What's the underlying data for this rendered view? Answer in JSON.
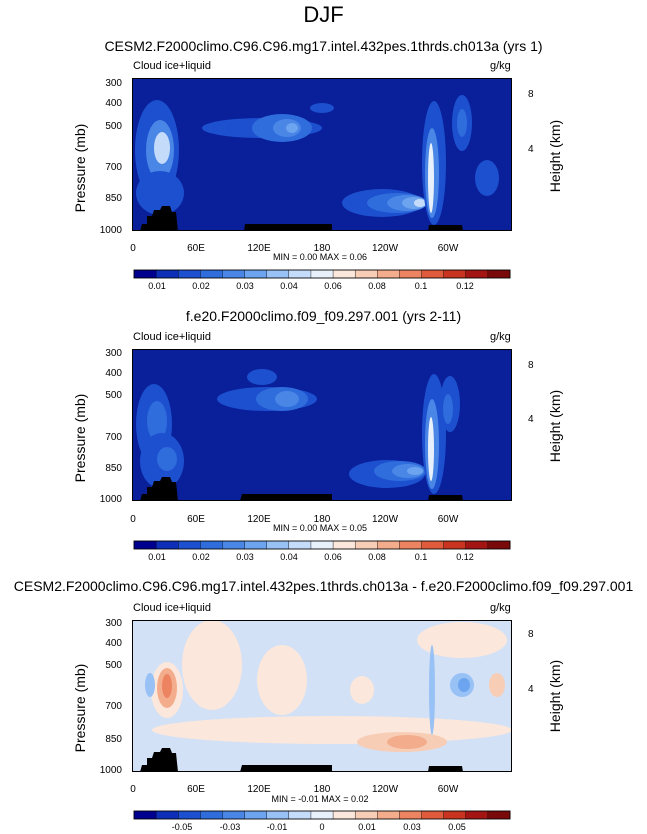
{
  "page": {
    "title": "DJF"
  },
  "colors": {
    "background_panel12": "#0a1f9a",
    "background_panel3": "#d3e1f7",
    "mask": "#000000",
    "cb_abs": [
      "#00008f",
      "#0d2fb8",
      "#1c50cf",
      "#2f6cdc",
      "#4a86e6",
      "#6da4ef",
      "#98c1f5",
      "#c4dcfa",
      "#e8f0fc",
      "#fbe7db",
      "#f7cdb6",
      "#f3ad8d",
      "#ec8462",
      "#e05b3c",
      "#c93420",
      "#a31512",
      "#7a0a0a"
    ],
    "cb_diff": [
      "#00008f",
      "#0d2fb8",
      "#1c50cf",
      "#2f6cdc",
      "#4a86e6",
      "#6da4ef",
      "#98c1f5",
      "#c4dcfa",
      "#e8f0fc",
      "#fbe7db",
      "#f7cdb6",
      "#f3ad8d",
      "#ec8462",
      "#e05b3c",
      "#c93420",
      "#a31512",
      "#7a0a0a"
    ]
  },
  "chart_data": [
    {
      "type": "heatmap",
      "title": "CESM2.F2000climo.C96.C96.mg17.intel.432pes.1thrds.ch013a (yrs 1)",
      "variable_label": "Cloud ice+liquid",
      "units": "g/kg",
      "ylabel": "Pressure (mb)",
      "ylabel_right": "Height (km)",
      "xticks": [
        "0",
        "60E",
        "120E",
        "180",
        "120W",
        "60W"
      ],
      "yticks": [
        "300",
        "400",
        "500",
        "700",
        "850",
        "1000"
      ],
      "height_ticks": [
        "8",
        "4"
      ],
      "min_max": "MIN =   0.00  MAX =   0.06",
      "colorbar_labels": [
        "0.01",
        "0.02",
        "0.03",
        "0.04",
        "0.06",
        "0.08",
        "0.1",
        "0.12"
      ],
      "ylim": [
        1000,
        300
      ],
      "xlim": [
        0,
        360
      ]
    },
    {
      "type": "heatmap",
      "title": "f.e20.F2000climo.f09_f09.297.001 (yrs 2-11)",
      "variable_label": "Cloud ice+liquid",
      "units": "g/kg",
      "ylabel": "Pressure (mb)",
      "ylabel_right": "Height (km)",
      "xticks": [
        "0",
        "60E",
        "120E",
        "180",
        "120W",
        "60W"
      ],
      "yticks": [
        "300",
        "400",
        "500",
        "700",
        "850",
        "1000"
      ],
      "height_ticks": [
        "8",
        "4"
      ],
      "min_max": "MIN =   0.00  MAX =   0.05",
      "colorbar_labels": [
        "0.01",
        "0.02",
        "0.03",
        "0.04",
        "0.06",
        "0.08",
        "0.1",
        "0.12"
      ],
      "ylim": [
        1000,
        300
      ],
      "xlim": [
        0,
        360
      ]
    },
    {
      "type": "heatmap",
      "title": "CESM2.F2000climo.C96.C96.mg17.intel.432pes.1thrds.ch013a - f.e20.F2000climo.f09_f09.297.001",
      "variable_label": "Cloud ice+liquid",
      "units": "g/kg",
      "ylabel": "Pressure (mb)",
      "ylabel_right": "Height (km)",
      "xticks": [
        "0",
        "60E",
        "120E",
        "180",
        "120W",
        "60W"
      ],
      "yticks": [
        "300",
        "400",
        "500",
        "700",
        "850",
        "1000"
      ],
      "height_ticks": [
        "8",
        "4"
      ],
      "min_max": "MIN =  -0.01  MAX =   0.02",
      "colorbar_labels": [
        "-0.05",
        "-0.03",
        "-0.01",
        "0",
        "0.01",
        "0.03",
        "0.05"
      ],
      "ylim": [
        1000,
        300
      ],
      "xlim": [
        0,
        360
      ]
    }
  ]
}
